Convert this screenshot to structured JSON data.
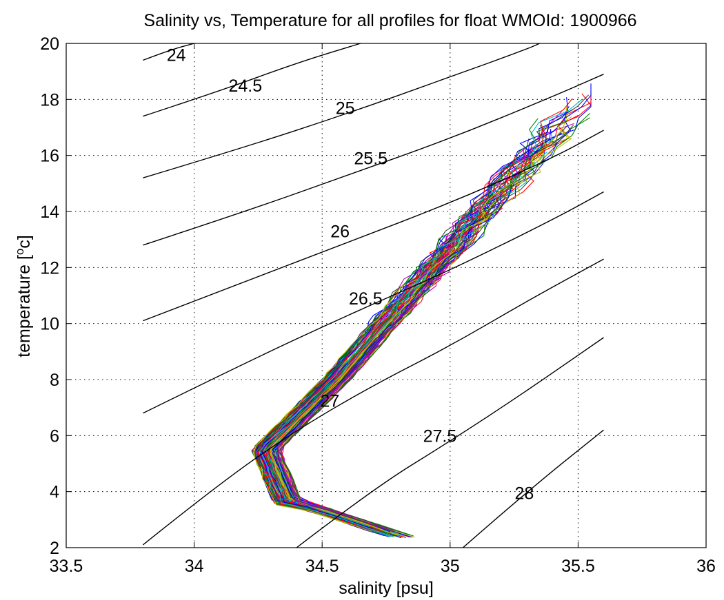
{
  "chart_data": {
    "type": "line",
    "title": "Salinity vs, Temperature for all profiles for float WMOId: 1900966",
    "xlabel": "salinity [psu]",
    "ylabel_main": "temperature [",
    "ylabel_sup": "o",
    "ylabel_end": "c]",
    "xlim": [
      33.5,
      36
    ],
    "ylim": [
      2,
      20
    ],
    "xticks": [
      "33.5",
      "34",
      "34.5",
      "35",
      "35.5",
      "36"
    ],
    "yticks": [
      "2",
      "4",
      "6",
      "8",
      "10",
      "12",
      "14",
      "16",
      "18",
      "20"
    ],
    "grid": true,
    "density_contours": [
      {
        "label": "24",
        "label_pos": [
          33.93,
          19.6
        ],
        "points": [
          [
            33.8,
            19.4
          ],
          [
            33.9,
            19.75
          ],
          [
            34.0,
            20.0
          ]
        ]
      },
      {
        "label": "24.5",
        "label_pos": [
          34.2,
          18.5
        ],
        "points": [
          [
            33.8,
            17.4
          ],
          [
            34.1,
            18.3
          ],
          [
            34.4,
            19.3
          ],
          [
            34.65,
            20.0
          ]
        ]
      },
      {
        "label": "25",
        "label_pos": [
          34.59,
          17.7
        ],
        "points": [
          [
            33.8,
            15.2
          ],
          [
            34.2,
            16.3
          ],
          [
            34.6,
            17.5
          ],
          [
            35.0,
            18.8
          ],
          [
            35.3,
            19.8
          ],
          [
            35.35,
            20.0
          ]
        ]
      },
      {
        "label": "25.5",
        "label_pos": [
          34.69,
          15.9
        ],
        "points": [
          [
            33.8,
            12.8
          ],
          [
            34.2,
            14.0
          ],
          [
            34.6,
            15.3
          ],
          [
            35.0,
            16.6
          ],
          [
            35.4,
            18.1
          ],
          [
            35.6,
            18.9
          ]
        ]
      },
      {
        "label": "26",
        "label_pos": [
          34.57,
          13.3
        ],
        "points": [
          [
            33.8,
            10.1
          ],
          [
            34.2,
            11.5
          ],
          [
            34.6,
            12.9
          ],
          [
            35.0,
            14.3
          ],
          [
            35.4,
            15.9
          ],
          [
            35.6,
            16.9
          ]
        ]
      },
      {
        "label": "26.5",
        "label_pos": [
          34.67,
          10.9
        ],
        "points": [
          [
            33.8,
            6.8
          ],
          [
            34.2,
            8.6
          ],
          [
            34.6,
            10.3
          ],
          [
            35.0,
            11.9
          ],
          [
            35.4,
            13.7
          ],
          [
            35.6,
            14.7
          ]
        ]
      },
      {
        "label": "27",
        "label_pos": [
          34.53,
          7.25
        ],
        "points": [
          [
            33.8,
            2.1
          ],
          [
            34.1,
            4.3
          ],
          [
            34.4,
            6.2
          ],
          [
            34.7,
            7.8
          ],
          [
            35.0,
            9.2
          ],
          [
            35.3,
            10.8
          ],
          [
            35.6,
            12.3
          ]
        ]
      },
      {
        "label": "27.5",
        "label_pos": [
          34.96,
          6.0
        ],
        "points": [
          [
            34.4,
            2.0
          ],
          [
            34.7,
            4.1
          ],
          [
            35.0,
            5.8
          ],
          [
            35.3,
            7.6
          ],
          [
            35.6,
            9.5
          ]
        ]
      },
      {
        "label": "28",
        "label_pos": [
          35.29,
          3.95
        ],
        "points": [
          [
            35.05,
            2.0
          ],
          [
            35.3,
            4.0
          ],
          [
            35.6,
            6.2
          ]
        ]
      }
    ],
    "series_colors": [
      "#0000ff",
      "#008000",
      "#ff0000",
      "#00bfbf",
      "#bf00bf",
      "#bfbf00",
      "#404040"
    ],
    "profile_count": 140
  }
}
